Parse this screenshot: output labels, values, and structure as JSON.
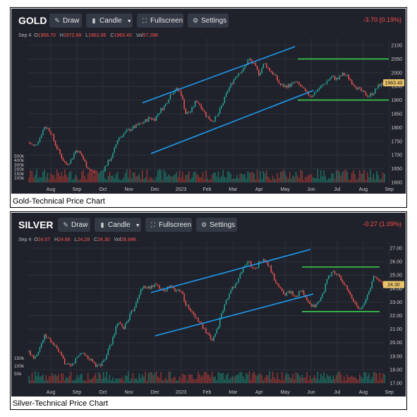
{
  "gold": {
    "symbol": "GOLD",
    "caption": "Gold-Technical Price Chart",
    "toolbar": {
      "draw": "Draw",
      "candle": "Candle",
      "fullscreen": "Fullscreen",
      "settings": "Settings"
    },
    "change": "-3.70 (0.19%)",
    "ohlc": {
      "date": "Sep 4",
      "o_label": "O",
      "o": "1966.70",
      "h_label": "H",
      "h": "1972.68",
      "l_label": "L",
      "l": "1962.66",
      "c_label": "C",
      "c": "1963.40",
      "vol_label": "Vol",
      "vol": "57.28K"
    },
    "price_tag": "1963.40",
    "colors": {
      "background": "#1f222b",
      "up": "#26a69a",
      "down": "#ef5350",
      "trendline": "#1e9bf0",
      "range_line": "#3ecf4c",
      "change": "#ff4d4d"
    },
    "chart_data": {
      "type": "candlestick",
      "x_ticks": [
        "Aug",
        "Sep",
        "Oct",
        "Nov",
        "Dec",
        "2023",
        "Feb",
        "Mar",
        "Apr",
        "May",
        "Jun",
        "Jul",
        "Aug",
        "Sep"
      ],
      "y_ticks": [
        "2100",
        "2050",
        "2000",
        "1950",
        "1900",
        "1850",
        "1800",
        "1750",
        "1700",
        "1650",
        "1600"
      ],
      "ylim": [
        1600,
        2100
      ],
      "volume_ticks": [
        "500k",
        "400k",
        "300k",
        "200k",
        "150k",
        "100k"
      ],
      "close_path": [
        1745,
        1730,
        1760,
        1805,
        1790,
        1740,
        1700,
        1665,
        1680,
        1720,
        1700,
        1660,
        1640,
        1628,
        1640,
        1670,
        1700,
        1760,
        1775,
        1790,
        1800,
        1810,
        1820,
        1835,
        1830,
        1860,
        1880,
        1920,
        1940,
        1930,
        1850,
        1860,
        1900,
        1875,
        1840,
        1825,
        1840,
        1885,
        1935,
        1970,
        2000,
        2010,
        2050,
        2030,
        1995,
        2035,
        2010,
        1990,
        1955,
        1950,
        1955,
        1965,
        1950,
        1925,
        1915,
        1935,
        1950,
        1970,
        1985,
        1975,
        1995,
        1985,
        1960,
        1940,
        1925,
        1915,
        1930,
        1955,
        1963
      ],
      "annotations": {
        "upper_channel": [
          [
            1890
          ],
          [
            2095
          ]
        ],
        "lower_channel": [
          [
            1705
          ],
          [
            1935
          ]
        ],
        "resistance": 2050,
        "support": 1900
      }
    }
  },
  "silver": {
    "symbol": "SILVER",
    "caption": "Silver-Technical Price Chart",
    "toolbar": {
      "draw": "Draw",
      "candle": "Candle",
      "fullscreen": "Fullscreen",
      "settings": "Settings"
    },
    "change": "-0.27 (1.09%)",
    "ohlc": {
      "date": "Sep 4",
      "o_label": "O",
      "o": "24.57",
      "h_label": "H",
      "h": "24.66",
      "l_label": "L",
      "l": "24.28",
      "c_label": "C",
      "c": "24.30",
      "vol_label": "Vol",
      "vol": "28.84K"
    },
    "price_tag": "24.30",
    "colors": {
      "background": "#1f222b",
      "up": "#26a69a",
      "down": "#ef5350",
      "trendline": "#1e9bf0",
      "range_line": "#3ecf4c",
      "change": "#ff4d4d"
    },
    "chart_data": {
      "type": "candlestick",
      "x_ticks": [
        "Aug",
        "Sep",
        "Oct",
        "Nov",
        "Dec",
        "2023",
        "Feb",
        "Mar",
        "Apr",
        "May",
        "Jun",
        "Jul",
        "Aug",
        "Sep"
      ],
      "y_ticks": [
        "27.00",
        "26.00",
        "25.00",
        "24.00",
        "23.00",
        "22.00",
        "21.00",
        "20.00",
        "19.00",
        "18.00",
        "17.00"
      ],
      "ylim": [
        17,
        27
      ],
      "volume_ticks": [
        "150k",
        "100k",
        "50k"
      ],
      "close_path": [
        19.3,
        18.9,
        19.6,
        20.5,
        20.2,
        19.7,
        19.1,
        18.4,
        18.2,
        18.8,
        19.3,
        19.0,
        18.6,
        18.2,
        18.5,
        19.2,
        20.3,
        21.5,
        21.0,
        21.8,
        22.5,
        23.6,
        24.2,
        24.0,
        24.3,
        24.1,
        23.9,
        24.2,
        23.8,
        24.0,
        22.8,
        22.3,
        21.8,
        21.3,
        20.6,
        20.2,
        21.0,
        22.3,
        23.4,
        24.1,
        24.6,
        25.6,
        26.0,
        25.4,
        25.9,
        26.1,
        25.6,
        24.6,
        24.0,
        23.6,
        23.8,
        23.4,
        23.9,
        23.2,
        22.6,
        22.8,
        23.4,
        24.6,
        25.3,
        25.0,
        24.5,
        23.8,
        23.1,
        22.6,
        22.7,
        23.8,
        24.9,
        24.6,
        24.3
      ],
      "annotations": {
        "upper_channel": [
          [
            23.7
          ],
          [
            26.9
          ]
        ],
        "lower_channel": [
          [
            20.5
          ],
          [
            23.6
          ]
        ],
        "resistance": 25.6,
        "support": 22.3
      }
    }
  }
}
